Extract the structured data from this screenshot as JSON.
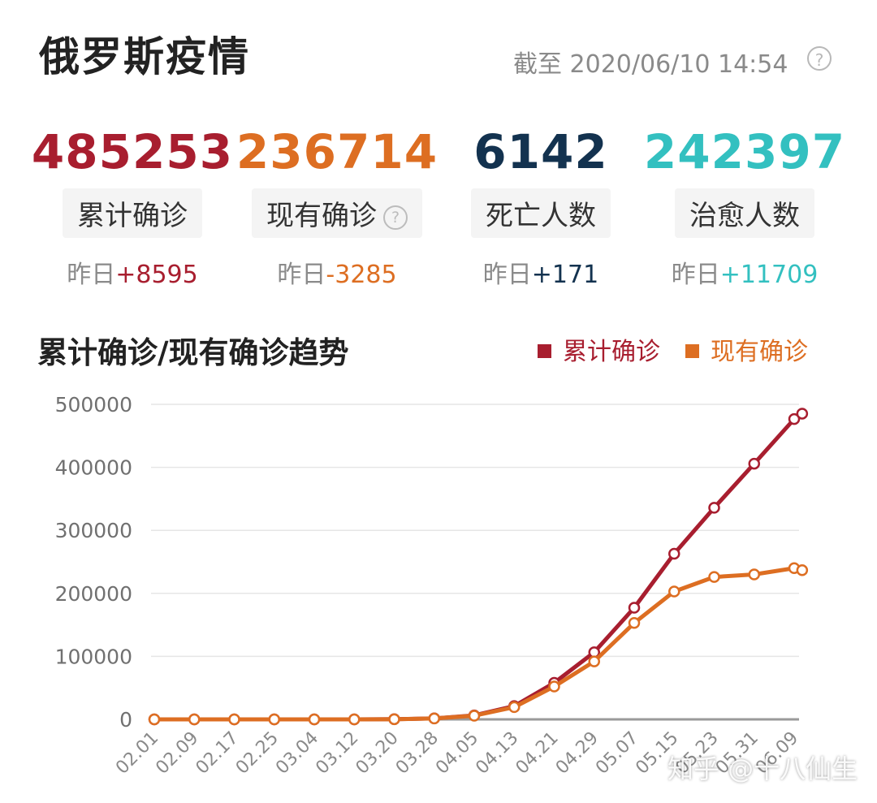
{
  "header": {
    "title": "俄罗斯疫情",
    "updated": "截至 2020/06/10 14:54",
    "help_glyph": "?"
  },
  "stats": [
    {
      "value": "485253",
      "label": "累计确诊",
      "delta_prefix": "昨日",
      "delta": "+8595",
      "color": "#a81e2f"
    },
    {
      "value": "236714",
      "label": "现有确诊",
      "delta_prefix": "昨日",
      "delta": "-3285",
      "color": "#dd6e22"
    },
    {
      "value": "6142",
      "label": "死亡人数",
      "delta_prefix": "昨日",
      "delta": "+171",
      "color": "#13324f"
    },
    {
      "value": "242397",
      "label": "治愈人数",
      "delta_prefix": "昨日",
      "delta": "+11709",
      "color": "#33c0c0"
    }
  ],
  "chart_data": {
    "type": "line",
    "title": "累计确诊/现有确诊趋势",
    "xlabel": "",
    "ylabel": "",
    "ylim": [
      0,
      500000
    ],
    "yticks": [
      0,
      100000,
      200000,
      300000,
      400000,
      500000
    ],
    "categories": [
      "02.01",
      "02.09",
      "02.17",
      "02.25",
      "03.04",
      "03.12",
      "03.20",
      "03.28",
      "04.05",
      "04.13",
      "04.21",
      "04.29",
      "05.07",
      "05.15",
      "05.23",
      "05.31",
      "06.09"
    ],
    "grid": true,
    "legend_position": "top-right",
    "series": [
      {
        "name": "累计确诊",
        "color": "#a81e2f",
        "values": [
          2,
          2,
          2,
          2,
          3,
          28,
          253,
          1534,
          6343,
          21102,
          57999,
          106498,
          177160,
          262843,
          335882,
          405843,
          476658
        ]
      },
      {
        "name": "现有确诊",
        "color": "#dd6e22",
        "values": [
          0,
          0,
          0,
          0,
          1,
          25,
          241,
          1432,
          5857,
          19418,
          52134,
          92000,
          153000,
          203000,
          226000,
          230000,
          240000
        ]
      }
    ],
    "extra_points": [
      {
        "series": "累计确诊",
        "x_index": 16.2,
        "value": 485253
      },
      {
        "series": "现有确诊",
        "x_index": 16.2,
        "value": 236714
      }
    ]
  },
  "watermark": "知乎 @十八仙生"
}
